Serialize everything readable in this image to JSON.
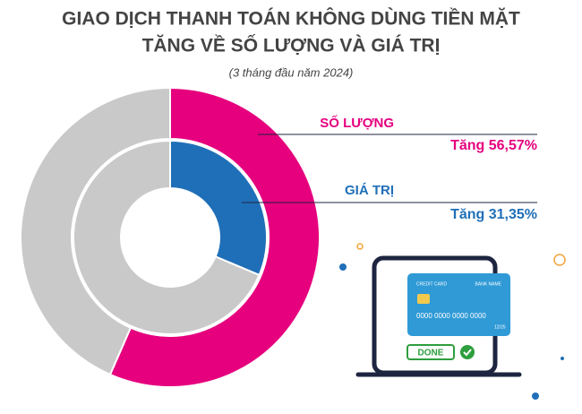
{
  "chart_data": {
    "type": "donut",
    "title": [
      "GIAO DỊCH THANH TOÁN KHÔNG DÙNG TIỀN MẶT",
      "TĂNG VỀ SỐ LƯỢNG VÀ GIÁ TRỊ"
    ],
    "subtitle": "(3 tháng đầu năm 2024)",
    "series": [
      {
        "name": "SỐ LƯỢNG",
        "colors": [
          "#e6007e",
          "#c9c9c9"
        ],
        "values": [
          56.57,
          43.43
        ],
        "value_labels": [
          "Tăng 56,57%",
          null
        ]
      },
      {
        "name": "GIÁ TRỊ",
        "colors": [
          "#1f6fb8",
          "#c9c9c9"
        ],
        "values": [
          31.35,
          68.65
        ],
        "value_labels": [
          "Tăng 31,35%",
          null
        ]
      }
    ]
  },
  "illustration": {
    "card_type": "CREDIT CARD",
    "bank": "BANK NAME",
    "number": "0000 0000 0000 0000",
    "expiry": "12/25",
    "button": "DONE"
  }
}
